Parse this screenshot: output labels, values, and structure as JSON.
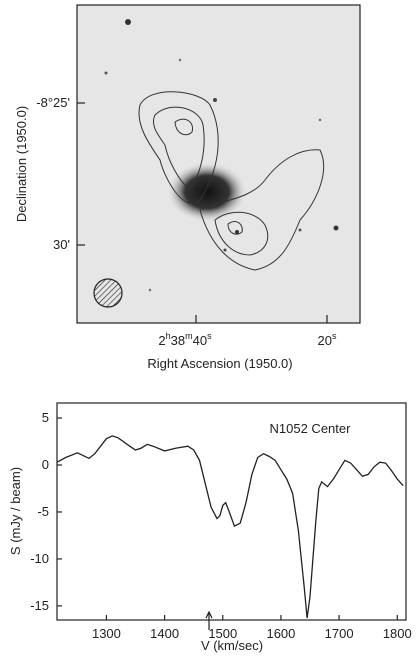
{
  "image_panel": {
    "y_tick_labels": [
      "-8°25'",
      "30'"
    ],
    "x_tick_labels": [
      {
        "parts": [
          "2",
          "h",
          "38",
          "m",
          "40",
          "s"
        ]
      },
      {
        "parts": [
          "20",
          "s"
        ]
      }
    ],
    "xlabel": "Right Ascension (1950.0)",
    "ylabel": "Declination (1950.0)"
  },
  "chart_data": {
    "type": "line",
    "annotation": "N1052  Center",
    "xlabel": "V   (km/sec)",
    "ylabel": "S (mJy / beam)",
    "color": "#222222",
    "x": [
      1215,
      1230,
      1250,
      1260,
      1270,
      1280,
      1300,
      1310,
      1320,
      1340,
      1350,
      1360,
      1370,
      1380,
      1400,
      1420,
      1440,
      1450,
      1460,
      1470,
      1480,
      1490,
      1495,
      1500,
      1505,
      1510,
      1520,
      1530,
      1540,
      1550,
      1560,
      1570,
      1580,
      1590,
      1600,
      1610,
      1620,
      1630,
      1640,
      1645,
      1650,
      1660,
      1665,
      1670,
      1680,
      1690,
      1700,
      1710,
      1720,
      1730,
      1740,
      1750,
      1760,
      1770,
      1780,
      1790,
      1800,
      1810
    ],
    "values": [
      0.3,
      0.8,
      1.3,
      1.0,
      0.7,
      1.2,
      2.8,
      3.1,
      2.9,
      2.0,
      1.6,
      1.8,
      2.2,
      2.0,
      1.5,
      1.8,
      2.0,
      1.6,
      0.5,
      -2,
      -4.5,
      -5.7,
      -5.4,
      -4.3,
      -4,
      -4.8,
      -6.5,
      -6.2,
      -4,
      -1,
      0.8,
      1.2,
      0.9,
      0.5,
      -0.5,
      -1.5,
      -3,
      -7,
      -13,
      -16.3,
      -14,
      -6,
      -2.5,
      -1.8,
      -2.3,
      -1.5,
      -0.5,
      0.5,
      0.2,
      -0.5,
      -1.2,
      -1,
      -0.2,
      0.3,
      0.2,
      -0.6,
      -1.5,
      -2.2
    ],
    "xlim": [
      1215,
      1815
    ],
    "ylim": [
      -16.5,
      6.6
    ],
    "xticks": [
      1300,
      1400,
      1500,
      1600,
      1700,
      1800
    ],
    "yticks": [
      5,
      0,
      -5,
      -10,
      -15
    ]
  }
}
